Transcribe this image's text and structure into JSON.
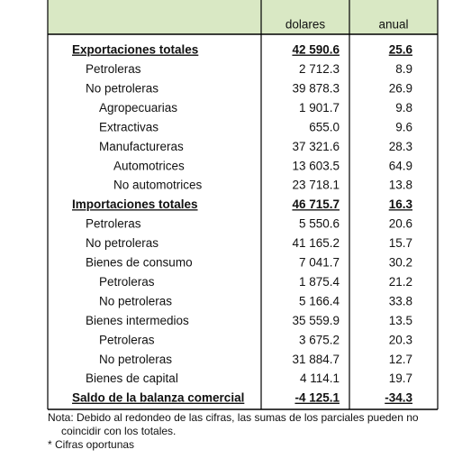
{
  "table": {
    "header": [
      "dolares",
      "anual"
    ],
    "rows": [
      [
        "Exportaciones totales",
        "42 590.6",
        "25.6"
      ],
      [
        "Petroleras",
        "2 712.3",
        "8.9"
      ],
      [
        "No petroleras",
        "39 878.3",
        "26.9"
      ],
      [
        "Agropecuarias",
        "1 901.7",
        "9.8"
      ],
      [
        "Extractivas",
        "655.0",
        "9.6"
      ],
      [
        "Manufactureras",
        "37 321.6",
        "28.3"
      ],
      [
        "Automotrices",
        "13 603.5",
        "64.9"
      ],
      [
        "No automotrices",
        "23 718.1",
        "13.8"
      ],
      [
        "Importaciones totales",
        "46 715.7",
        "16.3"
      ],
      [
        "Petroleras",
        "5 550.6",
        "20.6"
      ],
      [
        "No petroleras",
        "41 165.2",
        "15.7"
      ],
      [
        "Bienes de consumo",
        "7 041.7",
        "30.2"
      ],
      [
        "Petroleras",
        "1 875.4",
        "21.2"
      ],
      [
        "No petroleras",
        "5 166.4",
        "33.8"
      ],
      [
        "Bienes intermedios",
        "35 559.9",
        "13.5"
      ],
      [
        "Petroleras",
        "3 675.2",
        "20.3"
      ],
      [
        "No petroleras",
        "31 884.7",
        "12.7"
      ],
      [
        "Bienes de capital",
        "4 114.1",
        "19.7"
      ],
      [
        "Saldo de la balanza comercial",
        "-4 125.1",
        "-34.3"
      ]
    ]
  },
  "notes": [
    "Nota: Debido al redondeo de las cifras, las sumas de los parciales pueden no",
    "coincidir con los totales.",
    "* Cifras oportunas"
  ]
}
